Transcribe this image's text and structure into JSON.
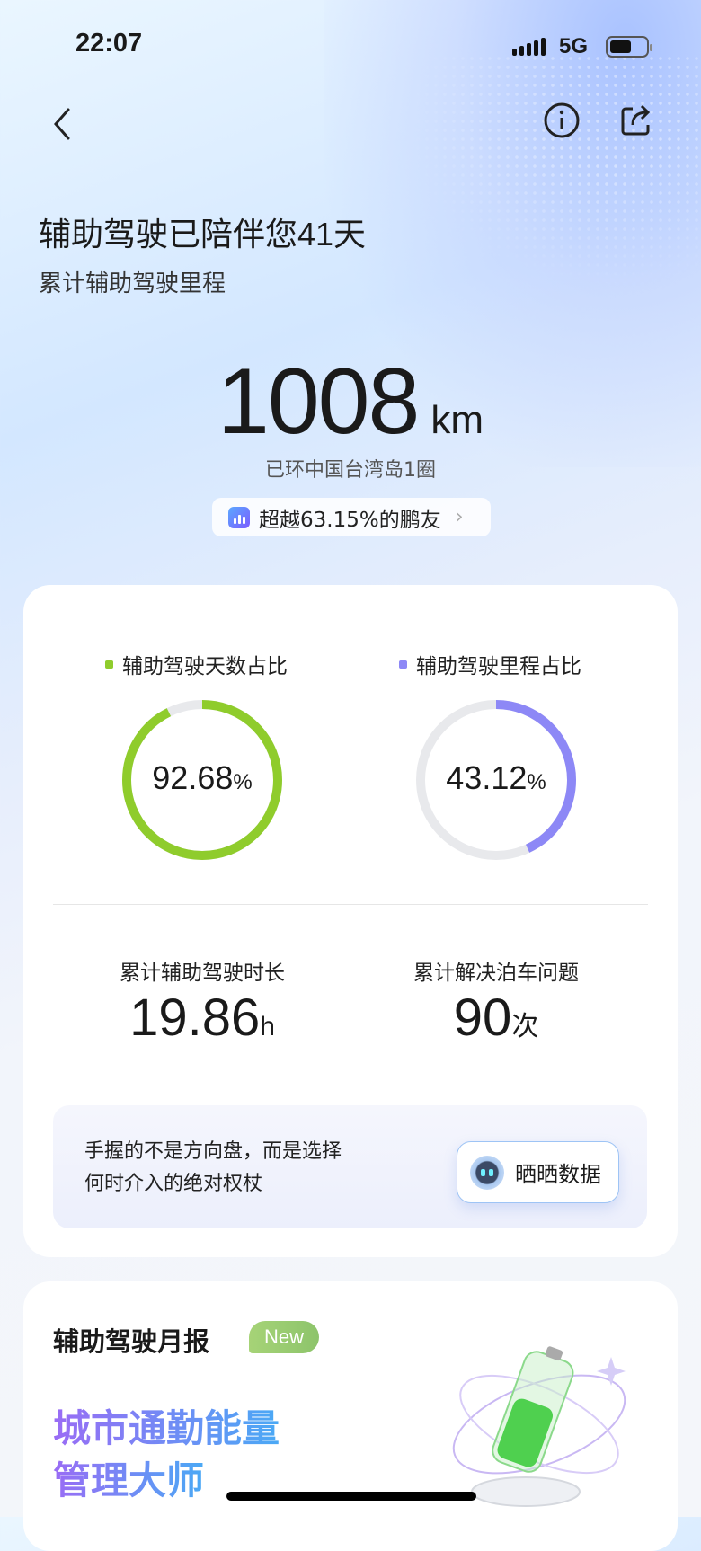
{
  "status_bar": {
    "time": "22:07",
    "network": "5G",
    "battery_level": 0.6
  },
  "nav": {
    "back_icon": "chevron-left-icon",
    "info_icon": "info-icon",
    "share_icon": "share-icon"
  },
  "header": {
    "title": "辅助驾驶已陪伴您41天",
    "subtitle": "累计辅助驾驶里程"
  },
  "mileage": {
    "value": "1008",
    "unit": "km",
    "comparison": "已环中国台湾岛1圈",
    "rank_text": "超越63.15%的鹏友"
  },
  "stats": {
    "days_ratio": {
      "label": "辅助驾驶天数占比",
      "value": "92.68",
      "unit": "%",
      "percent": 92.68,
      "color": "#8fcc2c"
    },
    "mileage_ratio": {
      "label": "辅助驾驶里程占比",
      "value": "43.12",
      "unit": "%",
      "percent": 43.12,
      "color": "#8d88f6"
    },
    "duration": {
      "label": "累计辅助驾驶时长",
      "value": "19.86",
      "unit": "h"
    },
    "parking": {
      "label": "累计解决泊车问题",
      "value": "90",
      "unit": "次"
    }
  },
  "quote": {
    "line1": "手握的不是方向盘，而是选择",
    "line2": "何时介入的绝对权杖",
    "share_button": "晒晒数据"
  },
  "monthly": {
    "title": "辅助驾驶月报",
    "badge": "New",
    "headline1": "城市通勤能量",
    "headline2": "管理大师"
  }
}
